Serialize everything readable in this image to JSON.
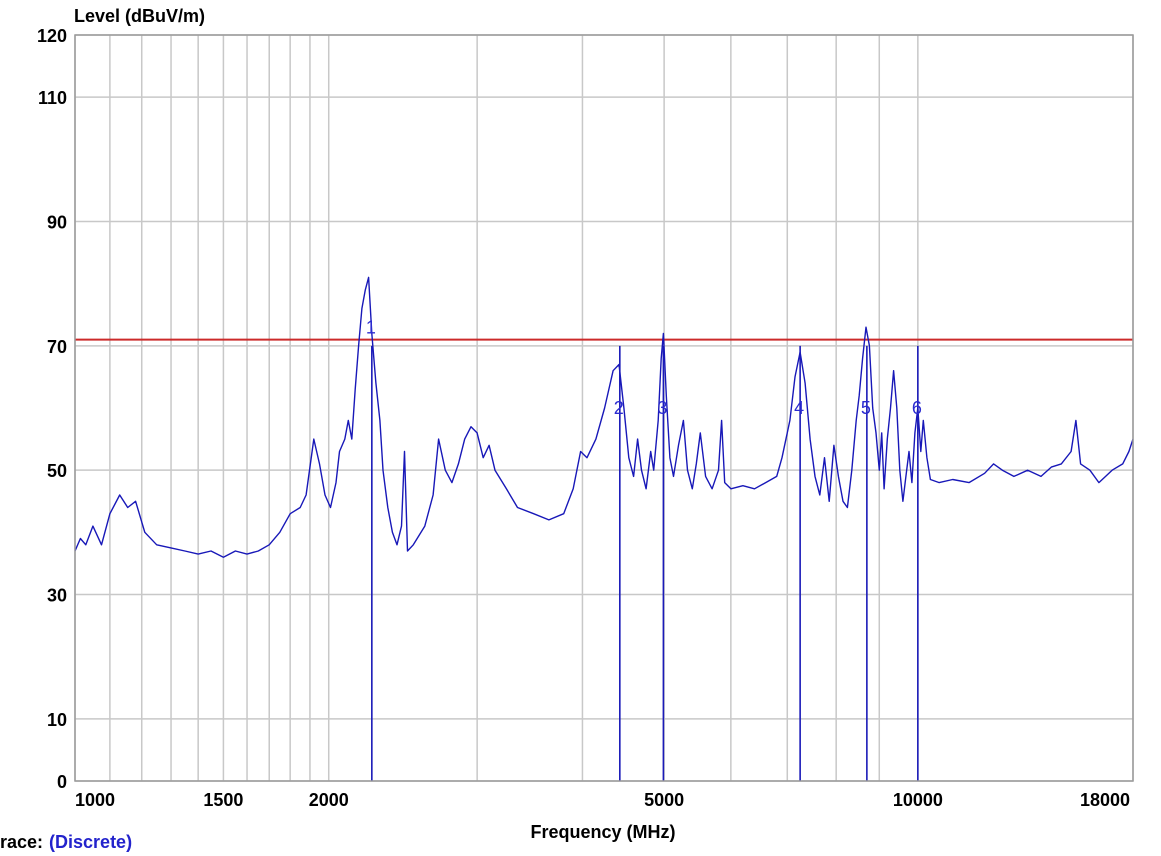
{
  "chart_data": {
    "type": "line",
    "ylabel": "Level (dBuV/m)",
    "xlabel": "Frequency (MHz)",
    "x_scale": "log",
    "xlim": [
      1000,
      18000
    ],
    "ylim": [
      0,
      120
    ],
    "x_tick_labels": [
      1000,
      1500,
      2000,
      5000,
      10000,
      18000
    ],
    "x_grid_lines": [
      1000,
      1100,
      1200,
      1300,
      1400,
      1500,
      1600,
      1700,
      1800,
      1900,
      2000,
      3000,
      4000,
      5000,
      6000,
      7000,
      8000,
      9000,
      10000,
      18000
    ],
    "y_tick_labels": [
      0,
      10,
      30,
      50,
      70,
      90,
      110,
      120
    ],
    "grid": true,
    "limit_line": {
      "value": 71,
      "color": "#cc2a2a"
    },
    "trace": {
      "color": "#1818b8",
      "points": [
        [
          1000,
          37
        ],
        [
          1015,
          39
        ],
        [
          1030,
          38
        ],
        [
          1050,
          41
        ],
        [
          1075,
          38
        ],
        [
          1100,
          43
        ],
        [
          1130,
          46
        ],
        [
          1155,
          44
        ],
        [
          1180,
          45
        ],
        [
          1210,
          40
        ],
        [
          1250,
          38
        ],
        [
          1300,
          37.5
        ],
        [
          1350,
          37
        ],
        [
          1400,
          36.5
        ],
        [
          1450,
          37
        ],
        [
          1500,
          36
        ],
        [
          1550,
          37
        ],
        [
          1600,
          36.5
        ],
        [
          1650,
          37
        ],
        [
          1700,
          38
        ],
        [
          1750,
          40
        ],
        [
          1800,
          43
        ],
        [
          1850,
          44
        ],
        [
          1880,
          46
        ],
        [
          1920,
          55
        ],
        [
          1950,
          51
        ],
        [
          1980,
          46
        ],
        [
          2010,
          44
        ],
        [
          2040,
          48
        ],
        [
          2060,
          53
        ],
        [
          2090,
          55
        ],
        [
          2110,
          58
        ],
        [
          2130,
          55
        ],
        [
          2150,
          63
        ],
        [
          2170,
          70
        ],
        [
          2190,
          76
        ],
        [
          2210,
          79
        ],
        [
          2230,
          81
        ],
        [
          2250,
          72
        ],
        [
          2275,
          64
        ],
        [
          2300,
          58
        ],
        [
          2320,
          50
        ],
        [
          2350,
          44
        ],
        [
          2380,
          40
        ],
        [
          2410,
          38
        ],
        [
          2440,
          41
        ],
        [
          2460,
          53
        ],
        [
          2480,
          37
        ],
        [
          2520,
          38
        ],
        [
          2600,
          41
        ],
        [
          2660,
          46
        ],
        [
          2700,
          55
        ],
        [
          2750,
          50
        ],
        [
          2800,
          48
        ],
        [
          2850,
          51
        ],
        [
          2900,
          55
        ],
        [
          2950,
          57
        ],
        [
          3000,
          56
        ],
        [
          3050,
          52
        ],
        [
          3100,
          54
        ],
        [
          3150,
          50
        ],
        [
          3250,
          47
        ],
        [
          3350,
          44
        ],
        [
          3500,
          43
        ],
        [
          3650,
          42
        ],
        [
          3800,
          43
        ],
        [
          3900,
          47
        ],
        [
          3980,
          53
        ],
        [
          4050,
          52
        ],
        [
          4150,
          55
        ],
        [
          4250,
          60
        ],
        [
          4350,
          66
        ],
        [
          4420,
          67
        ],
        [
          4480,
          60
        ],
        [
          4540,
          52
        ],
        [
          4600,
          49
        ],
        [
          4650,
          55
        ],
        [
          4700,
          50
        ],
        [
          4760,
          47
        ],
        [
          4820,
          53
        ],
        [
          4860,
          50
        ],
        [
          4920,
          58
        ],
        [
          4960,
          68
        ],
        [
          4990,
          72
        ],
        [
          5030,
          62
        ],
        [
          5080,
          52
        ],
        [
          5130,
          49
        ],
        [
          5200,
          54
        ],
        [
          5270,
          58
        ],
        [
          5330,
          50
        ],
        [
          5400,
          47
        ],
        [
          5460,
          51
        ],
        [
          5520,
          56
        ],
        [
          5600,
          49
        ],
        [
          5700,
          47
        ],
        [
          5800,
          50
        ],
        [
          5850,
          58
        ],
        [
          5900,
          48
        ],
        [
          6000,
          47
        ],
        [
          6200,
          47.5
        ],
        [
          6400,
          47
        ],
        [
          6600,
          48
        ],
        [
          6800,
          49
        ],
        [
          6900,
          52
        ],
        [
          7050,
          58
        ],
        [
          7150,
          65
        ],
        [
          7250,
          69
        ],
        [
          7350,
          64
        ],
        [
          7450,
          55
        ],
        [
          7550,
          49
        ],
        [
          7650,
          46
        ],
        [
          7750,
          52
        ],
        [
          7850,
          45
        ],
        [
          7950,
          54
        ],
        [
          8050,
          49
        ],
        [
          8150,
          45
        ],
        [
          8250,
          44
        ],
        [
          8350,
          50
        ],
        [
          8450,
          58
        ],
        [
          8520,
          62
        ],
        [
          8600,
          68
        ],
        [
          8680,
          73
        ],
        [
          8760,
          70
        ],
        [
          8840,
          60
        ],
        [
          8920,
          56
        ],
        [
          9000,
          50
        ],
        [
          9060,
          56
        ],
        [
          9120,
          47
        ],
        [
          9200,
          55
        ],
        [
          9280,
          60
        ],
        [
          9360,
          66
        ],
        [
          9440,
          60
        ],
        [
          9520,
          50
        ],
        [
          9600,
          45
        ],
        [
          9680,
          49
        ],
        [
          9760,
          53
        ],
        [
          9840,
          48
        ],
        [
          9920,
          56
        ],
        [
          10000,
          60
        ],
        [
          10080,
          53
        ],
        [
          10150,
          58
        ],
        [
          10250,
          52
        ],
        [
          10350,
          48.5
        ],
        [
          10600,
          48
        ],
        [
          11000,
          48.5
        ],
        [
          11500,
          48
        ],
        [
          12000,
          49.5
        ],
        [
          12300,
          51
        ],
        [
          12600,
          50
        ],
        [
          13000,
          49
        ],
        [
          13500,
          50
        ],
        [
          14000,
          49
        ],
        [
          14400,
          50.5
        ],
        [
          14800,
          51
        ],
        [
          15200,
          53
        ],
        [
          15400,
          58
        ],
        [
          15600,
          51
        ],
        [
          16000,
          50
        ],
        [
          16400,
          48
        ],
        [
          16700,
          49
        ],
        [
          17000,
          50
        ],
        [
          17500,
          51
        ],
        [
          17800,
          53
        ],
        [
          18000,
          55
        ]
      ]
    },
    "markers": [
      {
        "label": "1",
        "freq": 2250
      },
      {
        "label": "2",
        "freq": 4430
      },
      {
        "label": "3",
        "freq": 4990
      },
      {
        "label": "4",
        "freq": 7250
      },
      {
        "label": "5",
        "freq": 8700
      },
      {
        "label": "6",
        "freq": 10000
      }
    ],
    "colors": {
      "grid": "#c8c8c8",
      "frame": "#9a9a9a",
      "marker": "#1a1ab8",
      "marker_label": "#2b2bd0"
    }
  },
  "footer": {
    "trace_label": "race:",
    "trace_value": "(Discrete)"
  }
}
